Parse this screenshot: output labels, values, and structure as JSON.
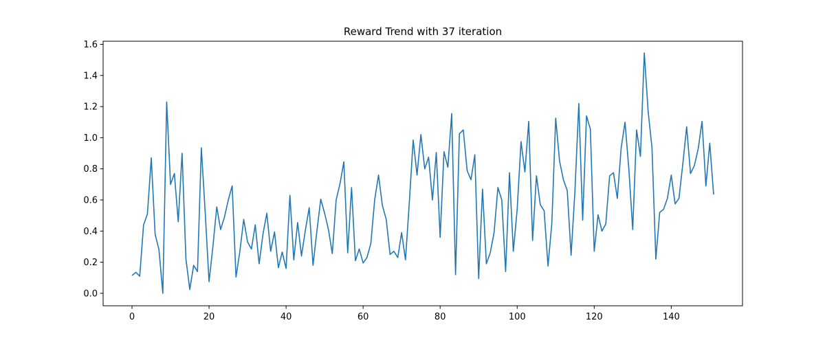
{
  "chart_data": {
    "type": "line",
    "title": "Reward Trend with 37 iteration",
    "xlabel": "",
    "ylabel": "",
    "xlim": [
      -7.5,
      158.5
    ],
    "ylim": [
      -0.08,
      1.62
    ],
    "xticks": [
      0,
      20,
      40,
      60,
      80,
      100,
      120,
      140
    ],
    "yticks": [
      0.0,
      0.2,
      0.4,
      0.6,
      0.8,
      1.0,
      1.2,
      1.4,
      1.6
    ],
    "ytick_labels": [
      "0.0",
      "0.2",
      "0.4",
      "0.6",
      "0.8",
      "1.0",
      "1.2",
      "1.4",
      "1.6"
    ],
    "grid": false,
    "line_color": "#1f77b4",
    "series": [
      {
        "x_start": 0,
        "x_step": 1,
        "values": [
          0.115,
          0.135,
          0.11,
          0.44,
          0.51,
          0.87,
          0.38,
          0.28,
          0.0,
          1.23,
          0.7,
          0.77,
          0.46,
          0.9,
          0.22,
          0.025,
          0.18,
          0.14,
          0.935,
          0.52,
          0.075,
          0.3,
          0.555,
          0.41,
          0.49,
          0.6,
          0.69,
          0.105,
          0.27,
          0.475,
          0.33,
          0.285,
          0.44,
          0.19,
          0.38,
          0.515,
          0.27,
          0.395,
          0.165,
          0.265,
          0.16,
          0.63,
          0.215,
          0.455,
          0.24,
          0.405,
          0.55,
          0.18,
          0.4,
          0.605,
          0.515,
          0.41,
          0.255,
          0.6,
          0.705,
          0.845,
          0.26,
          0.68,
          0.21,
          0.285,
          0.195,
          0.23,
          0.32,
          0.6,
          0.76,
          0.565,
          0.475,
          0.25,
          0.27,
          0.23,
          0.39,
          0.215,
          0.585,
          0.985,
          0.76,
          1.02,
          0.8,
          0.875,
          0.6,
          0.905,
          0.36,
          0.91,
          0.81,
          1.155,
          0.12,
          1.025,
          1.05,
          0.79,
          0.73,
          0.89,
          0.095,
          0.67,
          0.19,
          0.26,
          0.39,
          0.68,
          0.6,
          0.14,
          0.775,
          0.27,
          0.54,
          0.975,
          0.78,
          1.105,
          0.34,
          0.755,
          0.57,
          0.53,
          0.175,
          0.45,
          1.125,
          0.85,
          0.73,
          0.66,
          0.245,
          0.66,
          1.22,
          0.47,
          1.14,
          1.055,
          0.27,
          0.505,
          0.4,
          0.445,
          0.755,
          0.775,
          0.61,
          0.935,
          1.1,
          0.795,
          0.41,
          1.05,
          0.88,
          1.545,
          1.17,
          0.935,
          0.22,
          0.52,
          0.54,
          0.61,
          0.76,
          0.575,
          0.61,
          0.83,
          1.07,
          0.77,
          0.82,
          0.93,
          1.105,
          0.69,
          0.965,
          0.635
        ]
      }
    ]
  }
}
